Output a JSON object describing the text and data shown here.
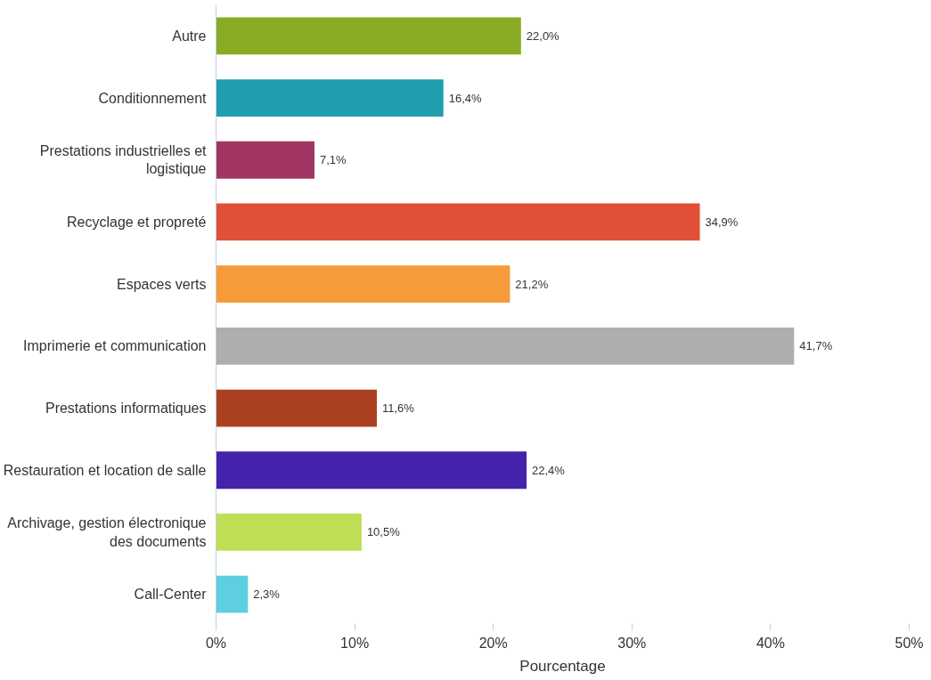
{
  "chart_data": {
    "type": "bar",
    "orientation": "horizontal",
    "xlabel": "Pourcentage",
    "categories": [
      "Autre",
      "Conditionnement",
      "Prestations industrielles et\nlogistique",
      "Recyclage et propreté",
      "Espaces verts",
      "Imprimerie et communication",
      "Prestations informatiques",
      "Restauration et location de salle",
      "Archivage, gestion électronique\ndes documents",
      "Call-Center"
    ],
    "values": [
      22.0,
      16.4,
      7.1,
      34.9,
      21.2,
      41.7,
      11.6,
      22.4,
      10.5,
      2.3
    ],
    "colors": [
      "#8aac25",
      "#219eae",
      "#a03563",
      "#e04f36",
      "#f79a3a",
      "#aeaeae",
      "#ab4120",
      "#4422ac",
      "#bede55",
      "#5dcfe0"
    ],
    "value_labels": [
      "22,0%",
      "16,4%",
      "7,1%",
      "34,9%",
      "21,2%",
      "41,7%",
      "11,6%",
      "22,4%",
      "10,5%",
      "2,3%"
    ],
    "xlim": [
      0,
      50
    ],
    "xticks": [
      {
        "value": 0,
        "label": "0%"
      },
      {
        "value": 10,
        "label": "10%"
      },
      {
        "value": 20,
        "label": "20%"
      },
      {
        "value": 30,
        "label": "30%"
      },
      {
        "value": 40,
        "label": "40%"
      },
      {
        "value": 50,
        "label": "50%"
      }
    ],
    "grid": false
  }
}
